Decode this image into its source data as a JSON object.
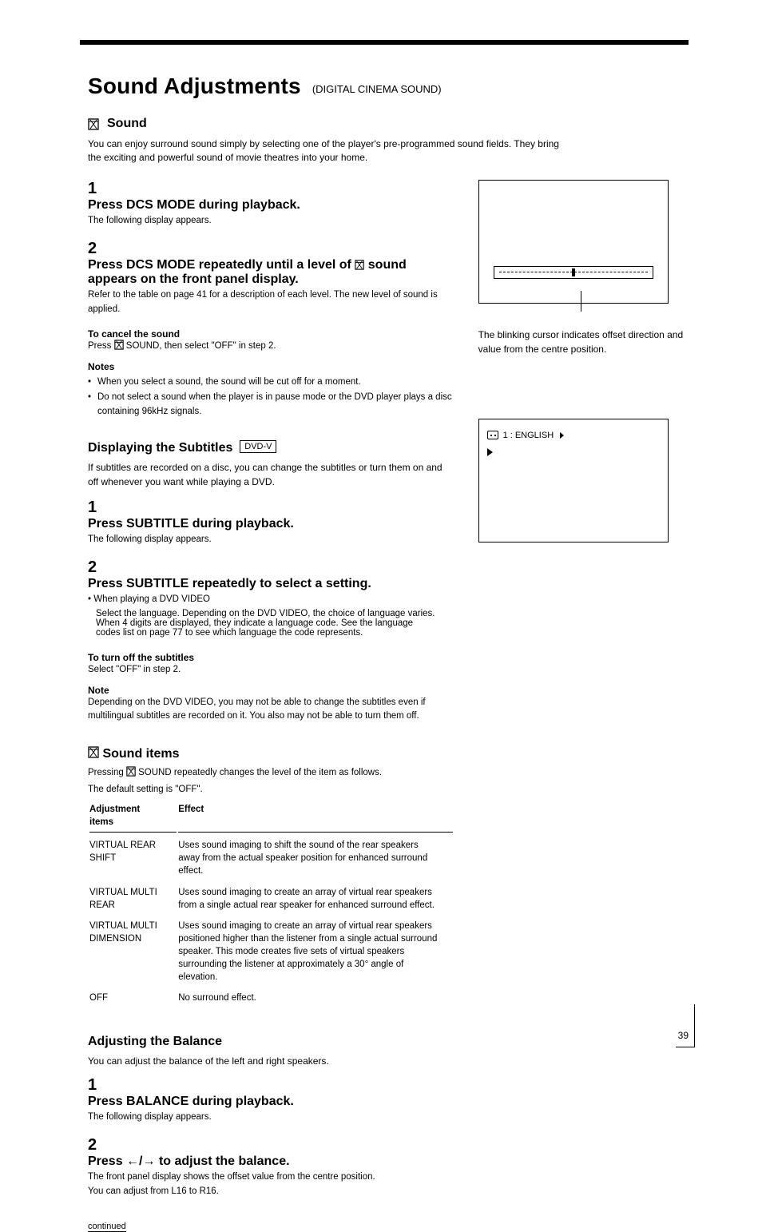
{
  "title": {
    "main": "Sound Adjustments",
    "sub": "(DIGITAL CINEMA SOUND)"
  },
  "sound_heading": "Sound",
  "intro": "You can enjoy surround sound simply by selecting one of the player's pre-programmed sound fields. They bring the exciting and powerful sound of movie theatres into your home.",
  "steps": [
    {
      "num": "1",
      "bold": "Press DCS MODE during playback.",
      "rest": "The following display appears."
    },
    {
      "num": "2",
      "bold_a": "Press DCS MODE repeatedly until a level of ",
      "bold_b": " sound appears on the front panel display.",
      "rest": "Refer to the table on page 41 for a description of each level. The new level of sound is applied."
    }
  ],
  "cancel": {
    "heading": "To cancel the sound",
    "body_a": "Press ",
    "body_b": " SOUND, then select \"OFF\" in step 2."
  },
  "notes": {
    "heading": "Notes",
    "items": [
      "When you select a sound, the sound will be cut off for a moment.",
      "Do not select a sound when the player is in pause mode or the DVD player plays a disc containing 96kHz signals."
    ]
  },
  "subtitles": {
    "heading": "Displaying the Subtitles",
    "type_label": "DVD-V",
    "body": "If subtitles are recorded on a disc, you can change the subtitles or turn them on and off whenever you want while playing a DVD.",
    "steps": [
      {
        "num": "1",
        "bold": "Press SUBTITLE during playback.",
        "rest": "The following display appears."
      },
      {
        "num": "2",
        "bold": "Press SUBTITLE repeatedly to select a setting.",
        "sub_a": "• When playing a DVD VIDEO",
        "sub_a_body": "Select the language. Depending on the DVD VIDEO, the choice of language varies. When 4 digits are displayed, they indicate a language code. See the language codes list on page 77 to see which language the code represents."
      }
    ],
    "turnoff": {
      "heading": "To turn off the subtitles",
      "body": "Select \"OFF\" in step 2."
    },
    "note": {
      "heading": "Note",
      "body": "Depending on the DVD VIDEO, you may not be able to change the subtitles even if multilingual subtitles are recorded on it. You also may not be able to turn them off."
    }
  },
  "sound_items": {
    "heading": "Sound items",
    "intro_a": "Pressing ",
    "intro_b": " SOUND repeatedly changes the level of the item as follows.",
    "off_note": "The default setting is \"OFF\".",
    "columns": [
      "Adjustment items",
      "Effect"
    ],
    "rows": [
      [
        "VIRTUAL REAR SHIFT",
        "Uses sound imaging to shift the sound of the rear speakers away from the actual speaker position for enhanced surround effect."
      ],
      [
        "VIRTUAL MULTI REAR",
        "Uses sound imaging to create an array of virtual rear speakers from a single actual rear speaker for enhanced surround effect."
      ],
      [
        "VIRTUAL MULTI DIMENSION",
        "Uses sound imaging to create an array of virtual rear speakers positioned higher than the listener from a single actual surround speaker. This mode creates five sets of virtual speakers surrounding the listener at approximately a 30° angle of elevation."
      ],
      [
        "OFF",
        "No surround effect."
      ]
    ]
  },
  "balance": {
    "heading": "Adjusting the Balance",
    "body": "You can adjust the balance of the left and right speakers.",
    "steps": [
      {
        "num": "1",
        "bold": "Press BALANCE during playback.",
        "rest": "The following display appears."
      },
      {
        "num": "2",
        "bold_a": "Press ",
        "bold_b": " to adjust the balance.",
        "rest": "The front panel display shows the offset value from the centre position.",
        "range": "You can adjust from L16 to R16."
      }
    ]
  },
  "fig1_caption": "The blinking cursor indicates offset direction and value from the centre position.",
  "fig2": {
    "line1": "1 : ENGLISH"
  },
  "continued": "continued",
  "page_number": "39"
}
